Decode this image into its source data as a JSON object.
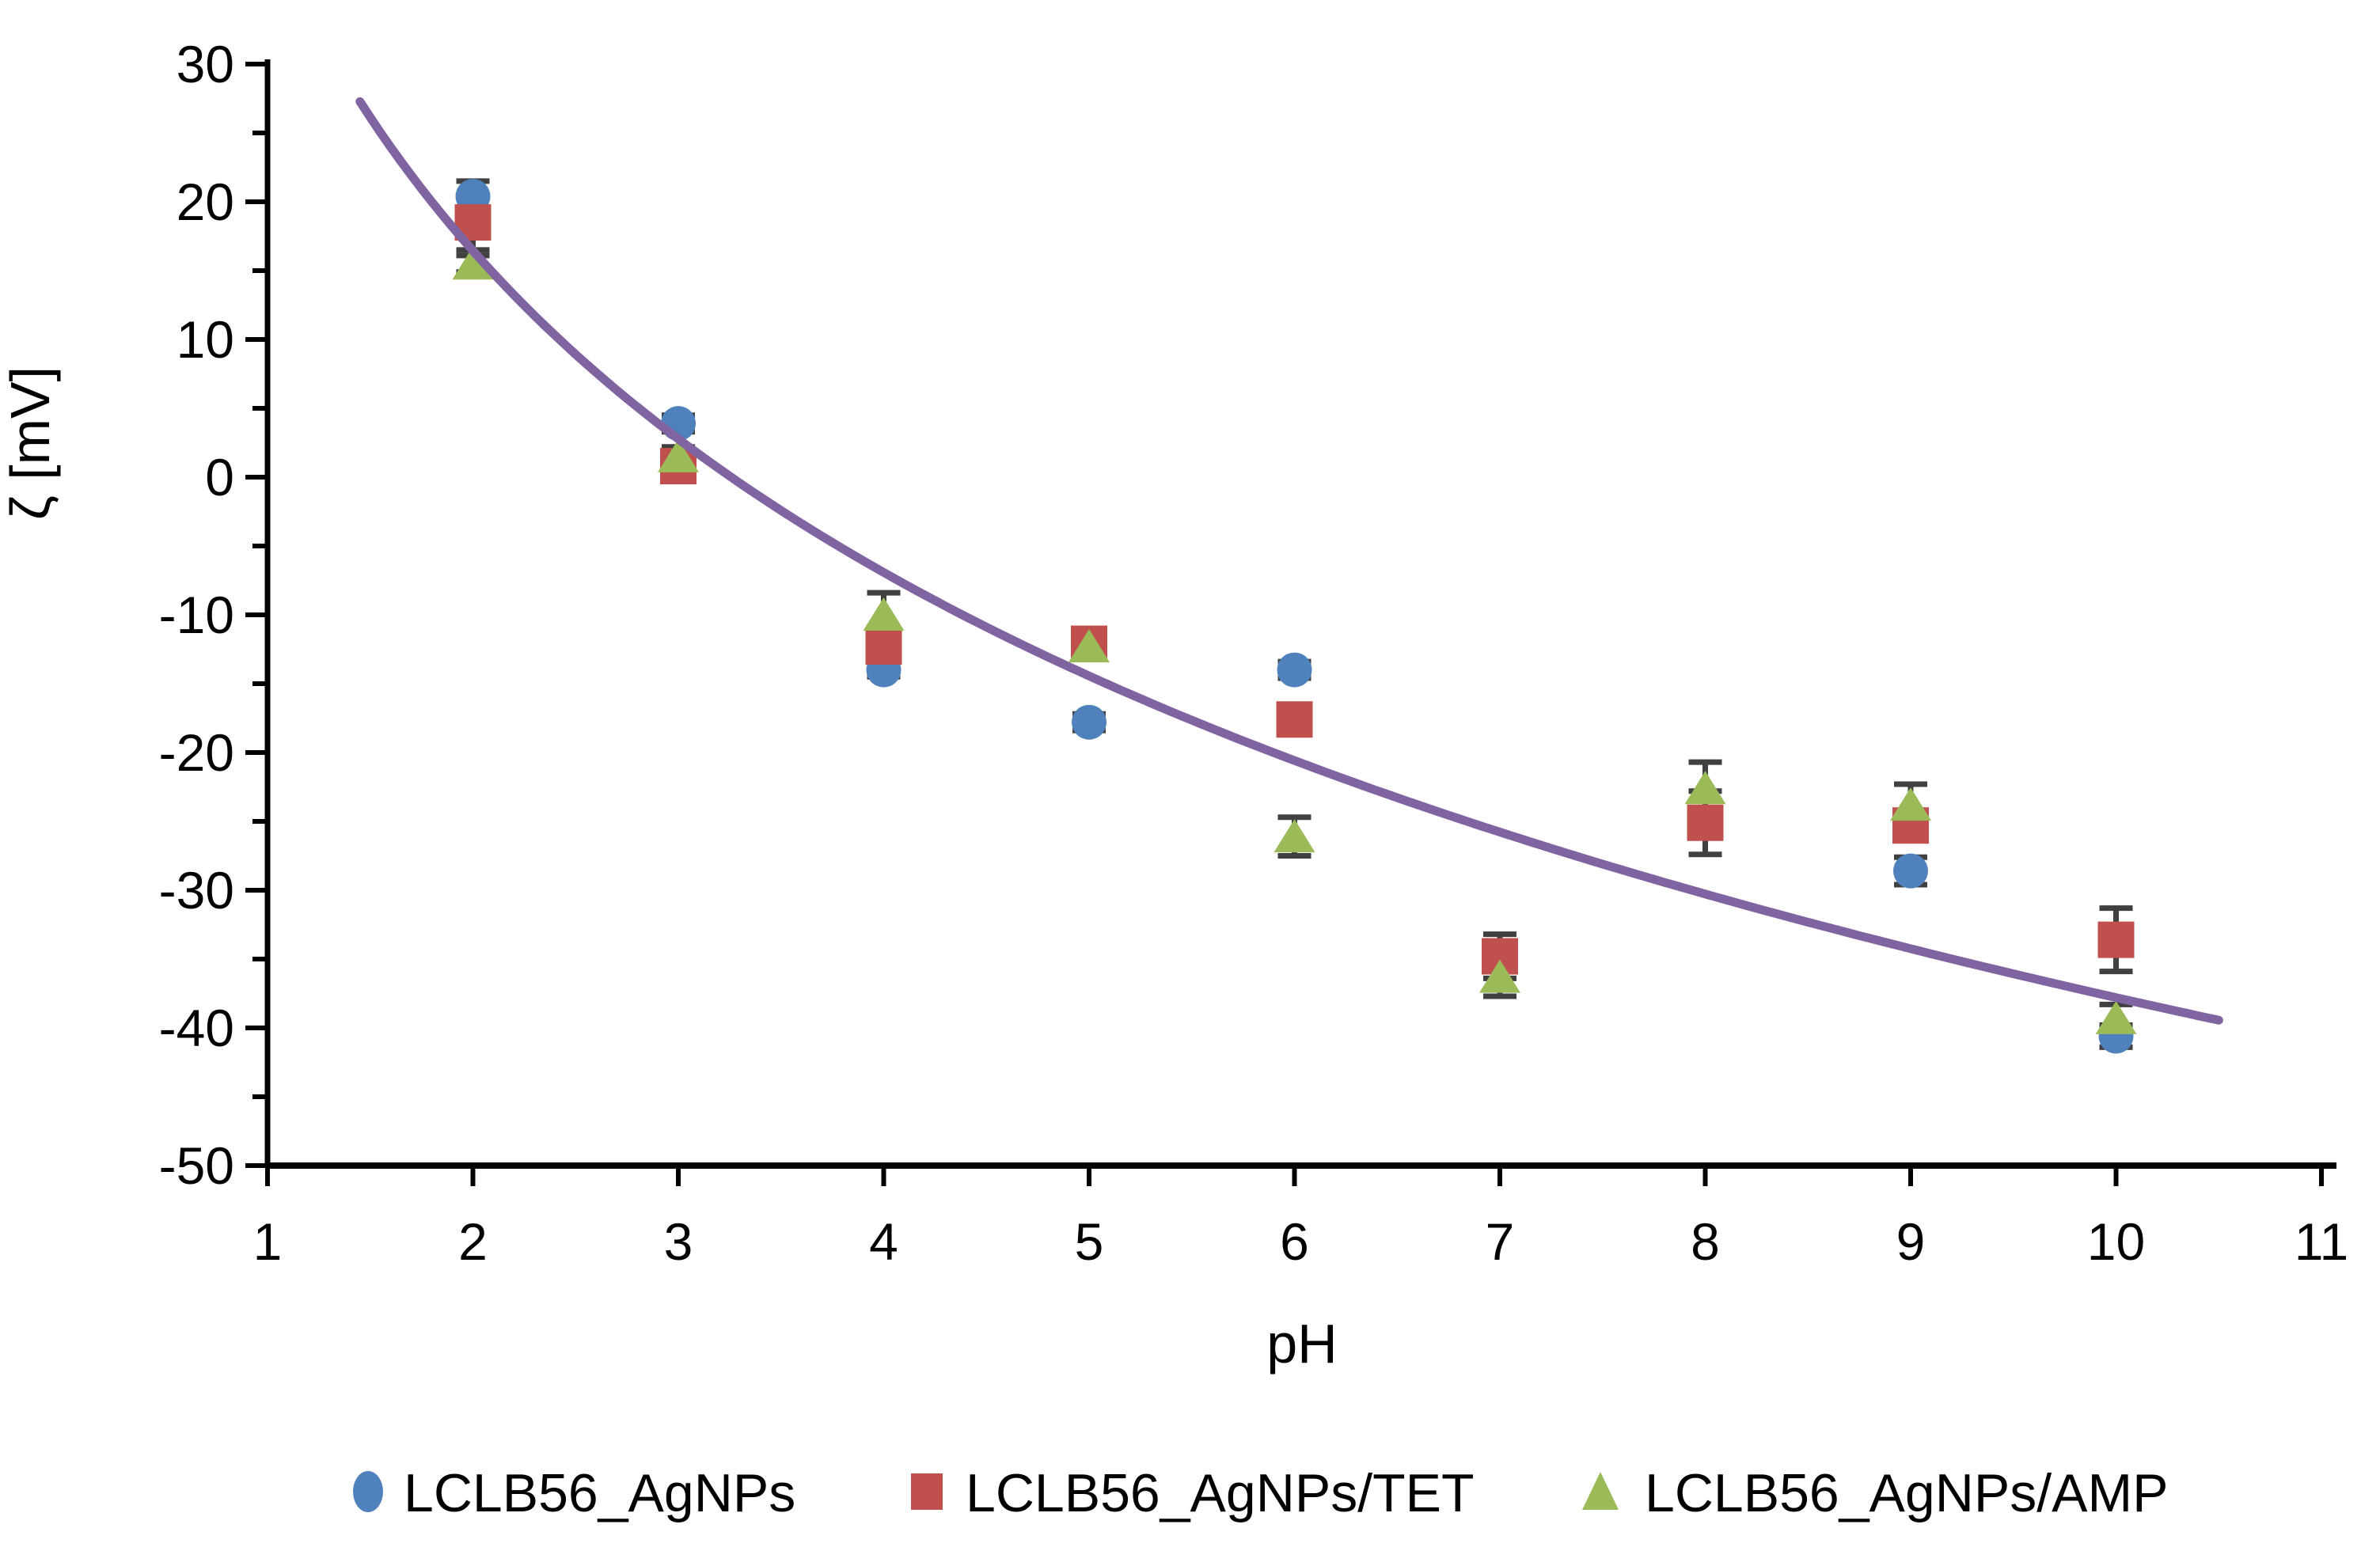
{
  "chart_data": {
    "type": "scatter",
    "title": "",
    "xlabel": "pH",
    "ylabel": "ζ [mV]",
    "xlim": [
      1,
      11
    ],
    "ylim": [
      -50,
      30
    ],
    "grid": false,
    "legend_position": "bottom",
    "xticks": [
      1,
      2,
      3,
      4,
      5,
      6,
      7,
      8,
      9,
      10,
      11
    ],
    "yticks_major": [
      30,
      20,
      10,
      0,
      -10,
      -20,
      -30,
      -40,
      -50
    ],
    "yticks_minor": [
      25,
      15,
      5,
      -5,
      -15,
      -25,
      -35,
      -45
    ],
    "axis_color": "#000000",
    "error_bar_color": "#404040",
    "series": [
      {
        "name": "LCLB56_AgNPs",
        "marker": "circle",
        "color": "#4F81BD",
        "points": [
          {
            "x": 2,
            "y": 20.4,
            "err": 1.1
          },
          {
            "x": 3,
            "y": 3.9,
            "err": 0.6
          },
          {
            "x": 4,
            "y": -14.0,
            "err": 0.5
          },
          {
            "x": 5,
            "y": -17.8,
            "err": 0.6
          },
          {
            "x": 6,
            "y": -14.0,
            "err": 0.6
          },
          {
            "x": 9,
            "y": -28.6,
            "err": 1.0
          },
          {
            "x": 10,
            "y": -40.6,
            "err": 0.8
          }
        ]
      },
      {
        "name": "LCLB56_AgNPs/TET",
        "marker": "square",
        "color": "#C0504D",
        "points": [
          {
            "x": 2,
            "y": 18.5,
            "err": 2.0
          },
          {
            "x": 3,
            "y": 0.8,
            "err": 0.5
          },
          {
            "x": 4,
            "y": -12.3,
            "err": 0.8
          },
          {
            "x": 5,
            "y": -12.1,
            "err": 1.0
          },
          {
            "x": 6,
            "y": -17.6,
            "err": 0.8
          },
          {
            "x": 7,
            "y": -34.8,
            "err": 1.6
          },
          {
            "x": 8,
            "y": -25.1,
            "err": 2.3
          },
          {
            "x": 9,
            "y": -25.3,
            "err": 0.8
          },
          {
            "x": 10,
            "y": -33.6,
            "err": 2.3
          }
        ]
      },
      {
        "name": "LCLB56_AgNPs/AMP",
        "marker": "triangle",
        "color": "#9BBB59",
        "points": [
          {
            "x": 2,
            "y": 15.5,
            "err": 0.6
          },
          {
            "x": 3,
            "y": 1.5,
            "err": 0.7
          },
          {
            "x": 4,
            "y": -10.0,
            "err": 1.6
          },
          {
            "x": 5,
            "y": -12.3,
            "err": 0.5
          },
          {
            "x": 6,
            "y": -26.1,
            "err": 1.4
          },
          {
            "x": 7,
            "y": -36.3,
            "err": 1.4
          },
          {
            "x": 8,
            "y": -22.6,
            "err": 1.9
          },
          {
            "x": 9,
            "y": -23.8,
            "err": 1.5
          },
          {
            "x": 10,
            "y": -39.3,
            "err": 1.0
          }
        ]
      }
    ],
    "trendline": {
      "type": "logarithmic",
      "color": "#8064A2",
      "a": 39.8,
      "b": 33.7,
      "x_start": 1.45,
      "x_end": 10.5,
      "equation": "y = 39.8 - 33.7*ln(x)"
    }
  }
}
